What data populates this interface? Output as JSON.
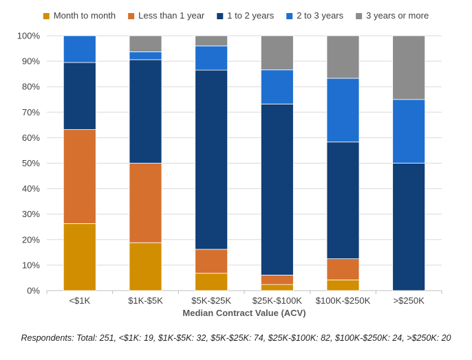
{
  "chart_data": {
    "type": "bar",
    "stacked": true,
    "xlabel": "Median Contract Value (ACV)",
    "ylabel": "",
    "ylim": [
      0,
      100
    ],
    "yticks": [
      "0%",
      "10%",
      "20%",
      "30%",
      "40%",
      "50%",
      "60%",
      "70%",
      "80%",
      "90%",
      "100%"
    ],
    "categories": [
      "<$1K",
      "$1K-$5K",
      "$5K-$25K",
      "$25K-$100K",
      "$100K-$250K",
      ">$250K"
    ],
    "legend_position": "top",
    "grid": true,
    "series": [
      {
        "name": "Month to month",
        "color": "#D18E00",
        "values": [
          26.3,
          18.8,
          6.8,
          2.4,
          4.2,
          0
        ]
      },
      {
        "name": "Less than 1 year",
        "color": "#D6702F",
        "values": [
          36.9,
          31.2,
          9.4,
          3.7,
          8.3,
          0
        ]
      },
      {
        "name": "1 to 2 years",
        "color": "#113F77",
        "values": [
          26.3,
          40.6,
          70.3,
          67.1,
          45.8,
          50
        ]
      },
      {
        "name": "2 to 3 years",
        "color": "#1F6FD0",
        "values": [
          10.5,
          3.1,
          9.5,
          13.4,
          25.0,
          25
        ]
      },
      {
        "name": "3 years or more",
        "color": "#8C8C8C",
        "values": [
          0,
          6.3,
          4.0,
          13.4,
          16.7,
          25
        ]
      }
    ]
  },
  "footnote": "Respondents: Total: 251, <$1K: 19, $1K-$5K: 32, $5K-$25K: 74, $25K-$100K: 82, $100K-$250K: 24, >$250K: 20"
}
